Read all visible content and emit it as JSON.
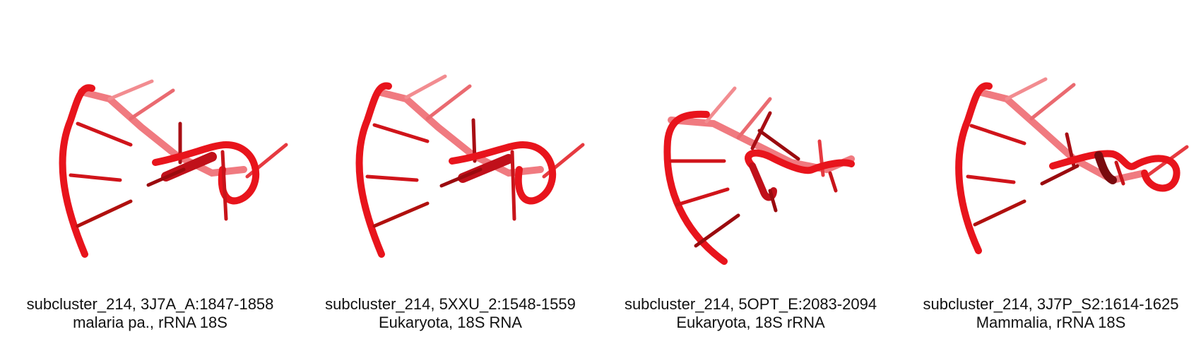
{
  "panels": [
    {
      "line1": "subcluster_214, 3J7A_A:1847-1858",
      "line2": "malaria pa., rRNA 18S"
    },
    {
      "line1": "subcluster_214, 5XXU_2:1548-1559",
      "line2": "Eukaryota, 18S RNA"
    },
    {
      "line1": "subcluster_214, 5OPT_E:2083-2094",
      "line2": "Eukaryota, 18S rRNA"
    },
    {
      "line1": "subcluster_214, 3J7P_S2:1614-1625",
      "line2": "Mammalia, rRNA 18S"
    }
  ],
  "colors": {
    "backbone": "#e8141c",
    "backbone_far": "#f06a70",
    "rung": "#c4141a",
    "rung_dark": "#8a0a0e"
  }
}
